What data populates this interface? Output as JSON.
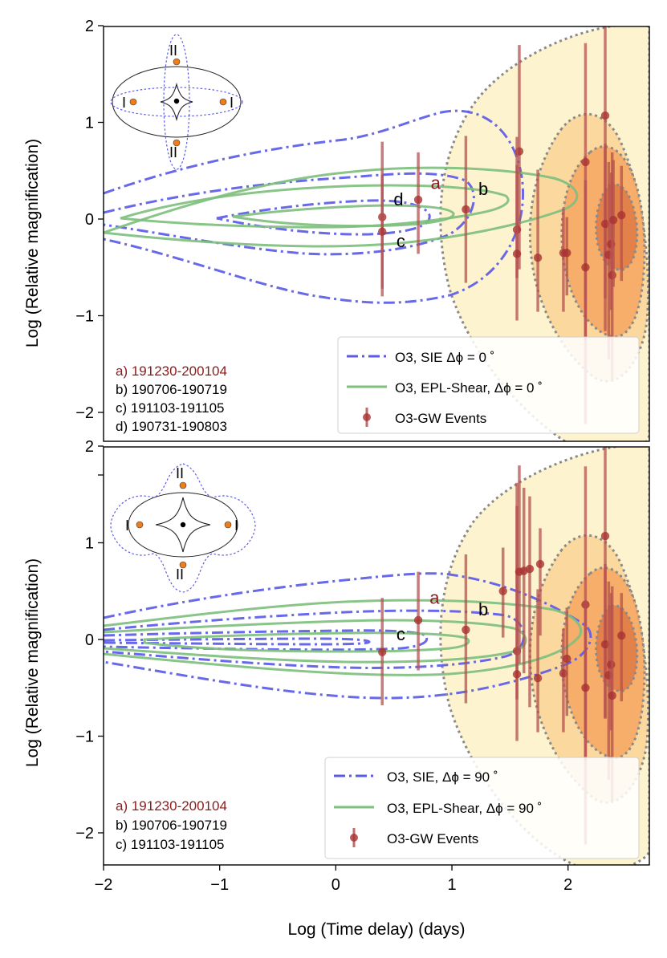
{
  "colors": {
    "sie": "#5b5be8",
    "epl": "#7fbf7f",
    "event": "#a83232",
    "event_bar": "#b55050",
    "kde_fill": [
      "#fdf3cc",
      "#fbd79b",
      "#f5a964",
      "#e07d47"
    ],
    "kde_line": "#8a8a8a",
    "label_a": "#8b1a1a",
    "caustic": "#222222",
    "crit_dash": "#5b5be8",
    "image_dot": "#ef7d1a"
  },
  "axes": {
    "xlabel": "Log (Time delay) (days)",
    "ylabel": "Log (Relative magnification)",
    "xlim": [
      -2,
      2.7
    ],
    "ylim": [
      -2.3,
      2
    ],
    "xticks": [
      {
        "v": -2,
        "label": "−2"
      },
      {
        "v": -1,
        "label": "−1"
      },
      {
        "v": 0,
        "label": "0"
      },
      {
        "v": 1,
        "label": "1"
      },
      {
        "v": 2,
        "label": "2"
      }
    ],
    "yticks": [
      {
        "v": -2,
        "label": "−2"
      },
      {
        "v": -1,
        "label": "−1"
      },
      {
        "v": 0,
        "label": "0"
      },
      {
        "v": 1,
        "label": "1"
      },
      {
        "v": 2,
        "label": "2"
      }
    ]
  },
  "chart_data": [
    {
      "type": "scatter",
      "panel": "top",
      "description_labels": {
        "image_I": "I",
        "image_II": "II"
      },
      "legend": [
        {
          "kind": "sie",
          "label": "O3, SIE Δϕ = 0 ˚"
        },
        {
          "kind": "epl",
          "label": "O3, EPL-Shear, Δϕ = 0 ˚"
        },
        {
          "kind": "event",
          "label": "O3-GW Events"
        }
      ],
      "pair_list": [
        {
          "text": "a) 191230-200104",
          "highlight": true
        },
        {
          "text": "b) 190706-190719",
          "highlight": false
        },
        {
          "text": "c) 191103-191105",
          "highlight": false
        },
        {
          "text": "d) 190731-190803",
          "highlight": false
        }
      ],
      "point_labels": [
        {
          "text": "a",
          "x": 0.86,
          "y": 0.31,
          "highlight": true
        },
        {
          "text": "b",
          "x": 1.27,
          "y": 0.25,
          "highlight": false
        },
        {
          "text": "c",
          "x": 0.56,
          "y": -0.29,
          "highlight": false
        },
        {
          "text": "d",
          "x": 0.54,
          "y": 0.14,
          "highlight": false
        }
      ],
      "events": [
        {
          "x": 0.4,
          "y": 0.02,
          "lo": -0.8,
          "hi": 0.8
        },
        {
          "x": 0.4,
          "y": -0.13,
          "lo": -0.72,
          "hi": 0.46
        },
        {
          "x": 0.71,
          "y": 0.2,
          "lo": -0.36,
          "hi": 0.69
        },
        {
          "x": 1.12,
          "y": 0.1,
          "lo": -0.66,
          "hi": 0.86
        },
        {
          "x": 1.58,
          "y": 0.7,
          "lo": -0.52,
          "hi": 1.8
        },
        {
          "x": 1.56,
          "y": -0.11,
          "lo": -0.61,
          "hi": 0.56
        },
        {
          "x": 1.56,
          "y": -0.36,
          "lo": -1.05,
          "hi": 0.85
        },
        {
          "x": 1.74,
          "y": -0.4,
          "lo": -0.96,
          "hi": 0.51
        },
        {
          "x": 1.96,
          "y": -0.35,
          "lo": -0.96,
          "hi": 0.11
        },
        {
          "x": 1.99,
          "y": -0.35,
          "lo": -0.79,
          "hi": 0.02
        },
        {
          "x": 2.15,
          "y": 0.59,
          "lo": -2.12,
          "hi": 1.82
        },
        {
          "x": 2.15,
          "y": -0.5,
          "lo": -1.26,
          "hi": 0.4
        },
        {
          "x": 2.32,
          "y": 1.07,
          "lo": -1.16,
          "hi": 2.0
        },
        {
          "x": 2.32,
          "y": -0.05,
          "lo": -0.82,
          "hi": 0.78
        },
        {
          "x": 2.35,
          "y": -0.37,
          "lo": -1.45,
          "hi": 0.59
        },
        {
          "x": 2.37,
          "y": -0.26,
          "lo": -0.94,
          "hi": 0.48
        },
        {
          "x": 2.38,
          "y": -0.58,
          "lo": -1.66,
          "hi": 0.69
        },
        {
          "x": 2.39,
          "y": -0.01,
          "lo": -0.7,
          "hi": 0.61
        },
        {
          "x": 2.46,
          "y": 0.04,
          "lo": -0.64,
          "hi": 0.55
        }
      ]
    },
    {
      "type": "scatter",
      "panel": "bottom",
      "description_labels": {
        "image_I": "I",
        "image_II": "II"
      },
      "legend": [
        {
          "kind": "sie",
          "label": "O3, SIE, Δϕ = 90 ˚"
        },
        {
          "kind": "epl",
          "label": "O3, EPL-Shear, Δϕ = 90 ˚"
        },
        {
          "kind": "event",
          "label": "O3-GW Events"
        }
      ],
      "pair_list": [
        {
          "text": "a) 191230-200104",
          "highlight": true
        },
        {
          "text": "b) 190706-190719",
          "highlight": false
        },
        {
          "text": "c) 191103-191105",
          "highlight": false
        }
      ],
      "point_labels": [
        {
          "text": "a",
          "x": 0.85,
          "y": 0.37,
          "highlight": true
        },
        {
          "text": "b",
          "x": 1.27,
          "y": 0.25,
          "highlight": false
        },
        {
          "text": "c",
          "x": 0.56,
          "y": -0.01,
          "highlight": false
        }
      ],
      "events": [
        {
          "x": 0.4,
          "y": -0.13,
          "lo": -0.68,
          "hi": 0.43
        },
        {
          "x": 0.71,
          "y": 0.2,
          "lo": -0.32,
          "hi": 0.7
        },
        {
          "x": 1.12,
          "y": 0.1,
          "lo": -0.66,
          "hi": 0.88
        },
        {
          "x": 1.44,
          "y": 0.5,
          "lo": 0.02,
          "hi": 0.95
        },
        {
          "x": 1.56,
          "y": -0.12,
          "lo": -0.62,
          "hi": 1.38
        },
        {
          "x": 1.56,
          "y": -0.36,
          "lo": -1.05,
          "hi": 1.62
        },
        {
          "x": 1.58,
          "y": 0.7,
          "lo": -0.25,
          "hi": 1.8
        },
        {
          "x": 1.62,
          "y": 0.71,
          "lo": -0.35,
          "hi": 1.57
        },
        {
          "x": 1.67,
          "y": 0.73,
          "lo": -0.7,
          "hi": 1.48
        },
        {
          "x": 1.74,
          "y": -0.4,
          "lo": -0.96,
          "hi": 0.52
        },
        {
          "x": 1.76,
          "y": 0.78,
          "lo": 0.04,
          "hi": 1.15
        },
        {
          "x": 1.96,
          "y": -0.35,
          "lo": -0.96,
          "hi": 0.11
        },
        {
          "x": 1.99,
          "y": -0.2,
          "lo": -0.79,
          "hi": 0.33
        },
        {
          "x": 2.15,
          "y": 0.36,
          "lo": -2.12,
          "hi": 1.79
        },
        {
          "x": 2.15,
          "y": -0.5,
          "lo": -1.25,
          "hi": 0.4
        },
        {
          "x": 2.32,
          "y": 1.07,
          "lo": -0.82,
          "hi": 2.0
        },
        {
          "x": 2.32,
          "y": -0.05,
          "lo": -0.81,
          "hi": 0.78
        },
        {
          "x": 2.35,
          "y": -0.37,
          "lo": -1.45,
          "hi": 0.6
        },
        {
          "x": 2.37,
          "y": -0.26,
          "lo": -0.94,
          "hi": 0.48
        },
        {
          "x": 2.38,
          "y": -0.58,
          "lo": -1.67,
          "hi": 0.55
        },
        {
          "x": 2.46,
          "y": 0.04,
          "lo": -0.64,
          "hi": 0.48
        }
      ]
    }
  ]
}
